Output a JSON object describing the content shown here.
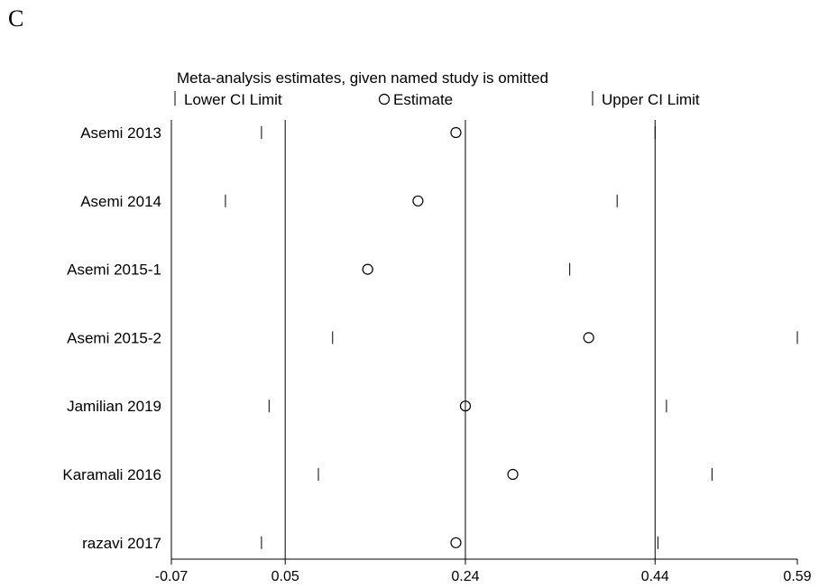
{
  "panel_letter": "C",
  "chart_data": {
    "type": "scatter",
    "title": "Meta-analysis estimates, given named study is omitted",
    "legend": {
      "placement": "top",
      "lower_label": "Lower CI Limit",
      "estimate_label": "Estimate",
      "upper_label": "Upper CI Limit"
    },
    "categories": [
      "Asemi 2013",
      "Asemi 2014",
      "Asemi 2015-1",
      "Asemi 2015-2",
      "Jamilian 2019",
      "Karamali 2016",
      "razavi 2017"
    ],
    "series": [
      {
        "name": "Lower CI Limit",
        "values": [
          0.025,
          -0.013,
          -0.07,
          0.1,
          0.033,
          0.085,
          0.025
        ]
      },
      {
        "name": "Estimate",
        "values": [
          0.23,
          0.19,
          0.137,
          0.37,
          0.24,
          0.29,
          0.23
        ]
      },
      {
        "name": "Upper CI Limit",
        "values": [
          0.44,
          0.4,
          0.35,
          0.59,
          0.452,
          0.5,
          0.443
        ]
      }
    ],
    "x_ticks": [
      -0.07,
      0.05,
      0.24,
      0.44,
      0.59
    ],
    "x_tick_labels": [
      "-0.07",
      "0.05",
      "0.24",
      "0.44",
      "0.59"
    ],
    "reference_lines": [
      0.05,
      0.24,
      0.44
    ],
    "xlim": [
      -0.07,
      0.59
    ],
    "grid": false
  }
}
